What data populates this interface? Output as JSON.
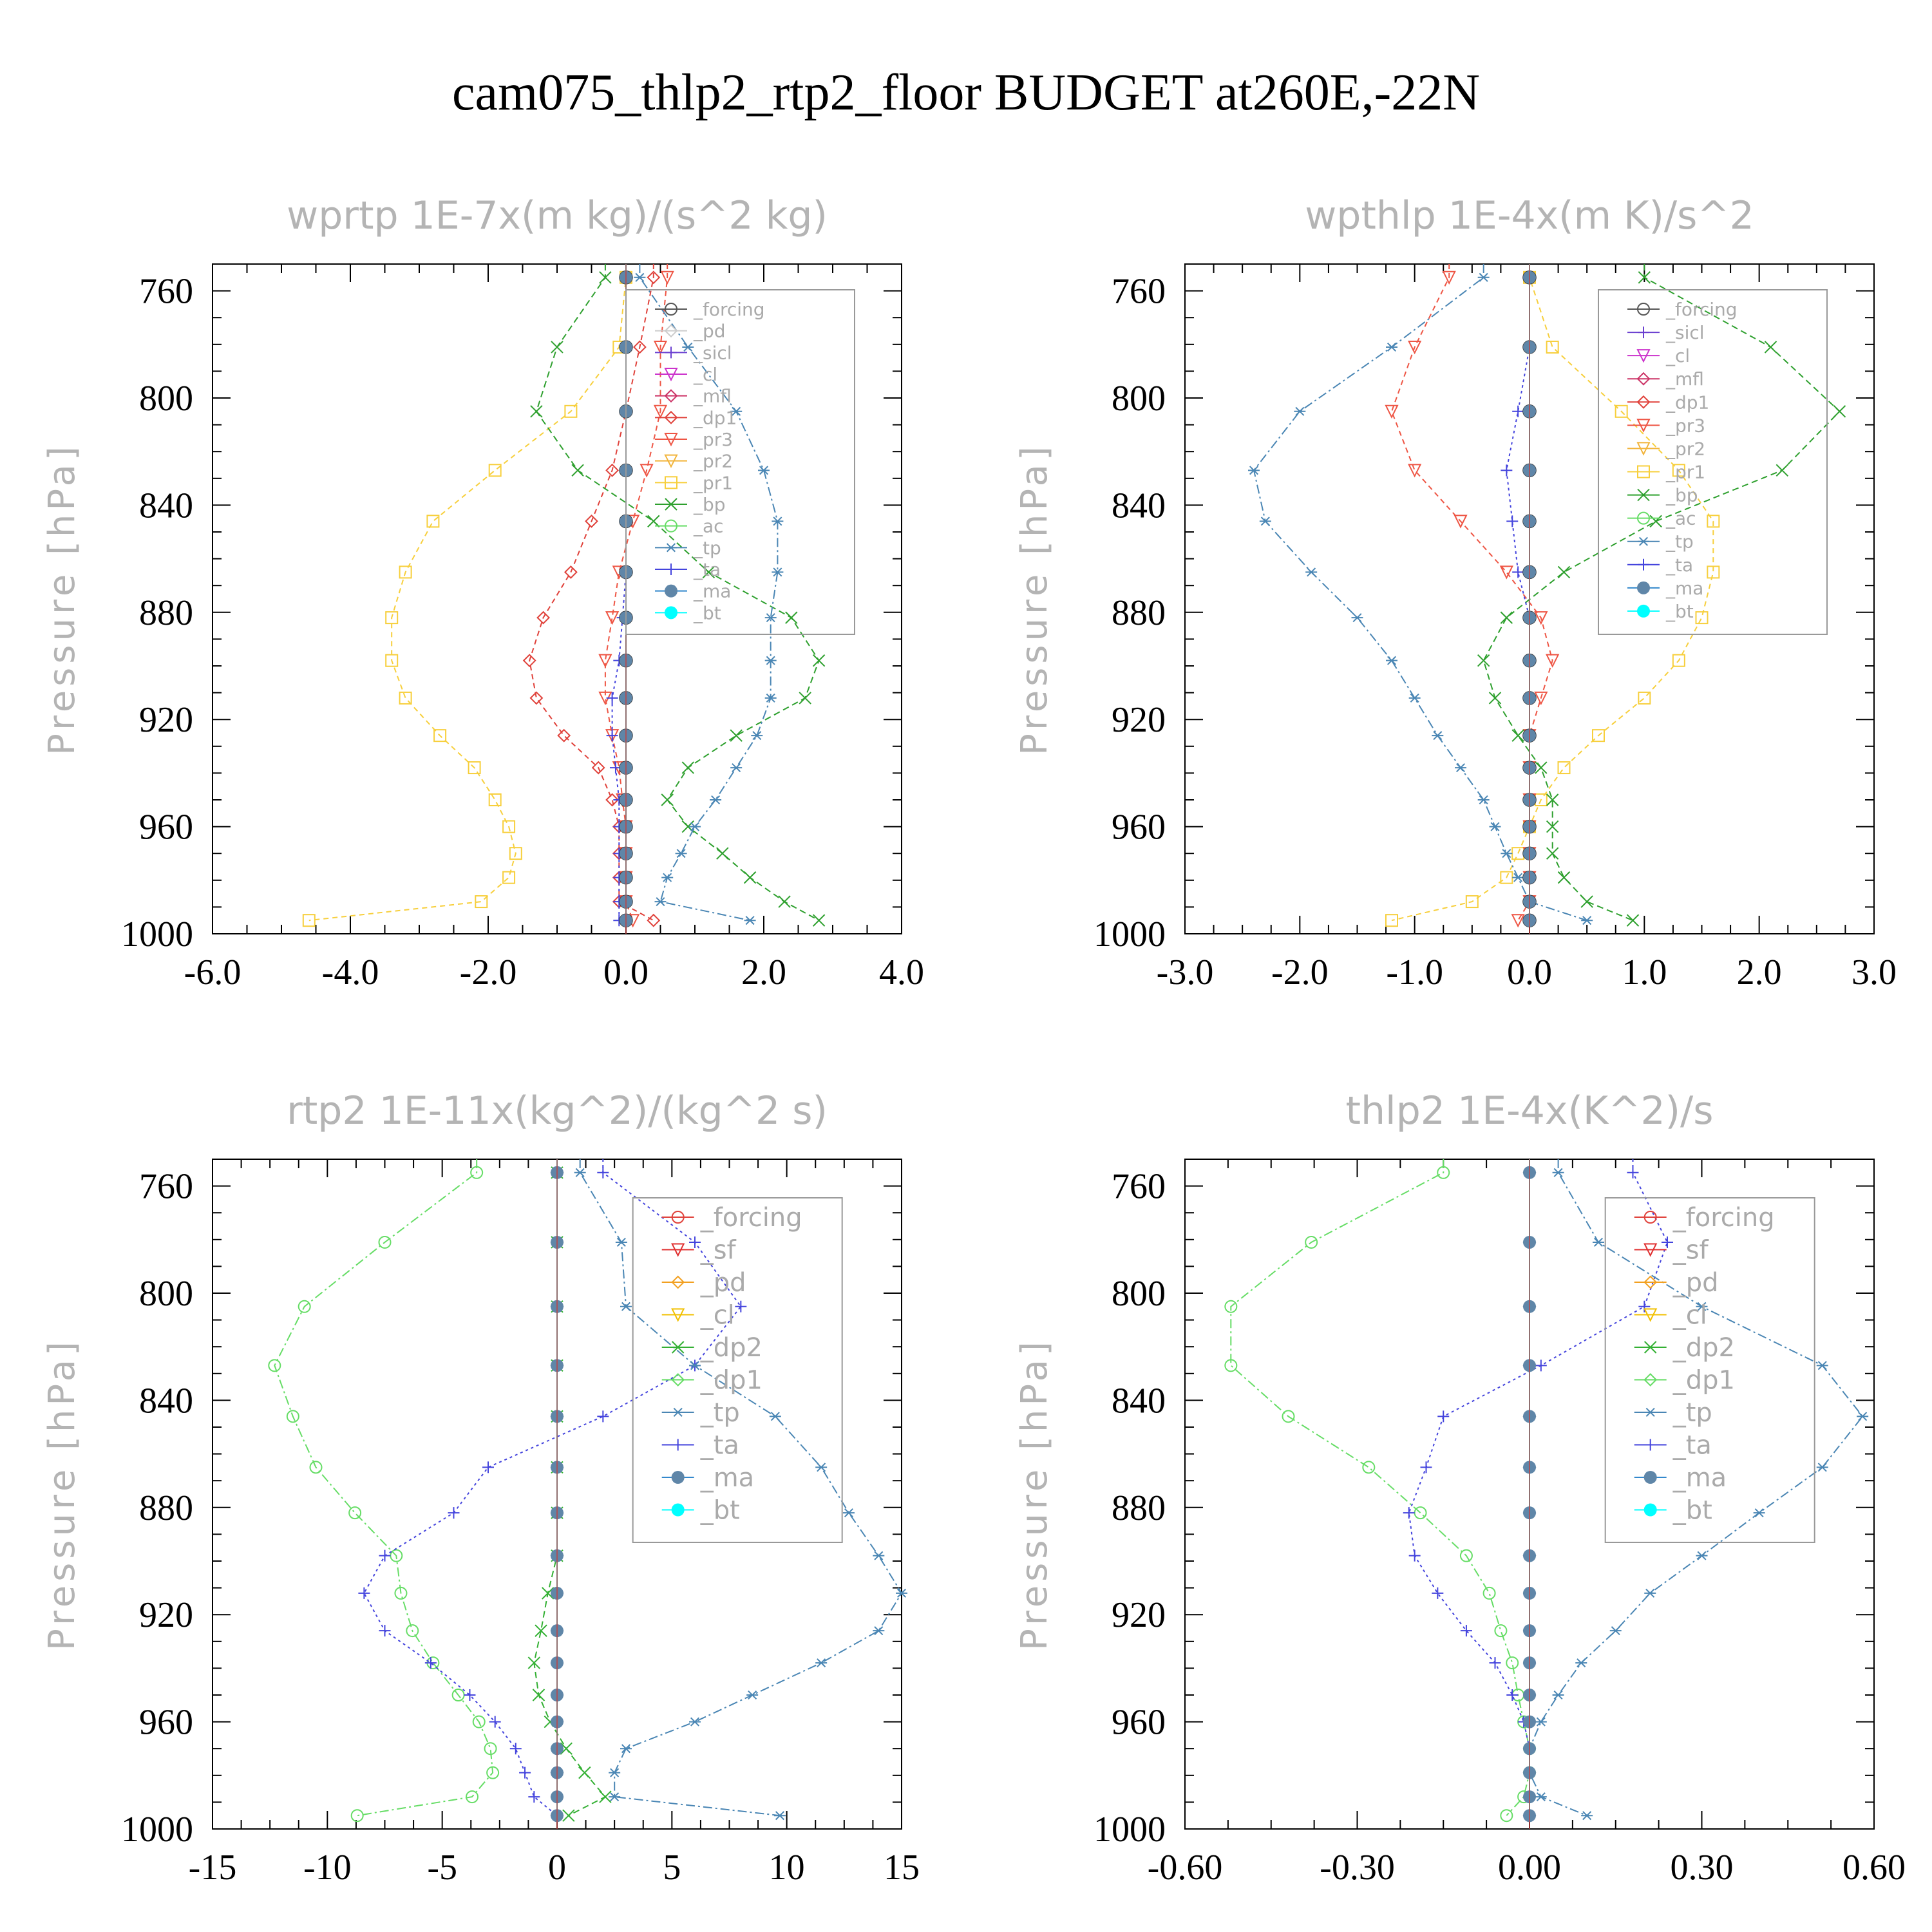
{
  "title": "cam075_thlp2_rtp2_floor  BUDGET at260E,-22N",
  "colors": {
    "forcing": "#555555",
    "pd": "#cccccc",
    "sicl": "#6a3fd0",
    "cl": "#cc33cc",
    "mfl": "#cc3366",
    "dp1": "#e0413a",
    "pr3": "#ee5544",
    "pr2": "#f2b43a",
    "pr1": "#f7cf3c",
    "bp": "#2ea02e",
    "ac": "#66dd66",
    "tp": "#4a86b4",
    "ta": "#4444dd",
    "ma": "#3388cc",
    "bt": "#00ffff",
    "sf": "#e03030",
    "dp2": "#33b033",
    "dp1g": "#66dd66",
    "cl_y": "#f2c000",
    "pd_o": "#f2a020"
  },
  "chart_data": [
    {
      "type": "line",
      "panel": "top-left",
      "title": "wprtp  1E-7x(m kg)/(s^2 kg)",
      "ylabel": "Pressure [hPa]",
      "xlabel": "",
      "xlim": [
        -6.0,
        4.0
      ],
      "ylim": [
        1000,
        750
      ],
      "xticks": [
        "-6.0",
        "-4.0",
        "-2.0",
        "0.0",
        "2.0",
        "4.0"
      ],
      "yticks": [
        "760",
        "800",
        "840",
        "880",
        "920",
        "960",
        "1000"
      ],
      "legend_position": "top-right",
      "legend": [
        "_forcing",
        "_pd",
        "_sicl",
        "_cl",
        "_mfl",
        "_dp1",
        "_pr3",
        "_pr2",
        "_pr1",
        "_bp",
        "_ac",
        "_tp",
        "_ta",
        "_ma",
        "_bt"
      ],
      "levels": [
        755,
        781,
        805,
        827,
        846,
        865,
        882,
        898,
        912,
        926,
        938,
        950,
        960,
        970,
        979,
        988,
        995
      ],
      "series": [
        {
          "key": "pr1",
          "values": [
            0.0,
            -0.1,
            -0.8,
            -1.9,
            -2.8,
            -3.2,
            -3.4,
            -3.4,
            -3.2,
            -2.7,
            -2.2,
            -1.9,
            -1.7,
            -1.6,
            -1.7,
            -2.1,
            -4.6
          ],
          "marker": "square",
          "dash": "8,6"
        },
        {
          "key": "pr3",
          "values": [
            0.6,
            0.5,
            0.5,
            0.3,
            0.1,
            -0.1,
            -0.2,
            -0.3,
            -0.3,
            -0.2,
            -0.1,
            -0.05,
            0.0,
            0.0,
            0.0,
            0.0,
            0.1
          ],
          "marker": "tri-down",
          "dash": "8,6"
        },
        {
          "key": "dp1",
          "values": [
            0.4,
            0.2,
            0.0,
            -0.2,
            -0.5,
            -0.8,
            -1.2,
            -1.4,
            -1.3,
            -0.9,
            -0.4,
            -0.2,
            -0.1,
            -0.1,
            -0.1,
            -0.1,
            0.4
          ],
          "marker": "diamond",
          "dash": "8,6"
        },
        {
          "key": "bp",
          "values": [
            -0.3,
            -1.0,
            -1.3,
            -0.7,
            0.4,
            1.2,
            2.4,
            2.8,
            2.6,
            1.6,
            0.9,
            0.6,
            0.9,
            1.4,
            1.8,
            2.3,
            2.8
          ],
          "marker": "x",
          "dash": "10,6"
        },
        {
          "key": "tp",
          "values": [
            0.2,
            0.9,
            1.6,
            2.0,
            2.2,
            2.2,
            2.1,
            2.1,
            2.1,
            1.9,
            1.6,
            1.3,
            1.0,
            0.8,
            0.6,
            0.5,
            1.8
          ],
          "marker": "star",
          "dash": "14,5,3,5"
        },
        {
          "key": "ta",
          "values": [
            0.0,
            0.0,
            0.0,
            0.0,
            0.0,
            0.0,
            -0.05,
            -0.1,
            -0.2,
            -0.2,
            -0.15,
            -0.1,
            -0.1,
            -0.1,
            -0.1,
            -0.1,
            -0.1
          ],
          "marker": "plus",
          "dash": "4,5"
        },
        {
          "key": "forcing",
          "values": [
            0,
            0,
            0,
            0,
            0,
            0,
            0,
            0,
            0,
            0,
            0,
            0,
            0,
            0,
            0,
            0,
            0
          ],
          "marker": "circle-dot",
          "dash": ""
        },
        {
          "key": "bt",
          "values": [
            0,
            0,
            0,
            0,
            0,
            0,
            0,
            0,
            0,
            0,
            0,
            0,
            0,
            0,
            0,
            0,
            0
          ],
          "marker": "dot",
          "dash": ""
        }
      ]
    },
    {
      "type": "line",
      "panel": "top-right",
      "title": "wpthlp  1E-4x(m K)/s^2",
      "ylabel": "Pressure [hPa]",
      "xlabel": "",
      "xlim": [
        -3.0,
        3.0
      ],
      "ylim": [
        1000,
        750
      ],
      "xticks": [
        "-3.0",
        "-2.0",
        "-1.0",
        "0.0",
        "1.0",
        "2.0",
        "3.0"
      ],
      "yticks": [
        "760",
        "800",
        "840",
        "880",
        "920",
        "960",
        "1000"
      ],
      "legend_position": "top-right",
      "legend": [
        "_forcing",
        "_sicl",
        "_cl",
        "_mfl",
        "_dp1",
        "_pr3",
        "_pr2",
        "_pr1",
        "_bp",
        "_ac",
        "_tp",
        "_ta",
        "_ma",
        "_bt"
      ],
      "levels": [
        755,
        781,
        805,
        827,
        846,
        865,
        882,
        898,
        912,
        926,
        938,
        950,
        960,
        970,
        979,
        988,
        995
      ],
      "series": [
        {
          "key": "pr1",
          "values": [
            0.0,
            0.2,
            0.8,
            1.3,
            1.6,
            1.6,
            1.5,
            1.3,
            1.0,
            0.6,
            0.3,
            0.1,
            0.0,
            -0.1,
            -0.2,
            -0.5,
            -1.2
          ],
          "marker": "square",
          "dash": "8,6"
        },
        {
          "key": "pr3",
          "values": [
            -0.7,
            -1.0,
            -1.2,
            -1.0,
            -0.6,
            -0.2,
            0.1,
            0.2,
            0.1,
            0.0,
            0.0,
            0.0,
            0.0,
            0.0,
            0.0,
            0.0,
            -0.1
          ],
          "marker": "tri-down",
          "dash": "8,6"
        },
        {
          "key": "bp",
          "values": [
            1.0,
            2.1,
            2.7,
            2.2,
            1.1,
            0.3,
            -0.2,
            -0.4,
            -0.3,
            -0.1,
            0.1,
            0.2,
            0.2,
            0.2,
            0.3,
            0.5,
            0.9
          ],
          "marker": "x",
          "dash": "10,6"
        },
        {
          "key": "tp",
          "values": [
            -0.4,
            -1.2,
            -2.0,
            -2.4,
            -2.3,
            -1.9,
            -1.5,
            -1.2,
            -1.0,
            -0.8,
            -0.6,
            -0.4,
            -0.3,
            -0.2,
            -0.1,
            0.0,
            0.5
          ],
          "marker": "star",
          "dash": "14,5,3,5"
        },
        {
          "key": "ta",
          "values": [
            0.0,
            0.0,
            -0.1,
            -0.2,
            -0.15,
            -0.1,
            0.0,
            0.0,
            0.0,
            0.0,
            0.0,
            0.0,
            0.0,
            0.0,
            0.0,
            0.0,
            0.0
          ],
          "marker": "plus",
          "dash": "4,5"
        },
        {
          "key": "forcing",
          "values": [
            0,
            0,
            0,
            0,
            0,
            0,
            0,
            0,
            0,
            0,
            0,
            0,
            0,
            0,
            0,
            0,
            0
          ],
          "marker": "circle-dot",
          "dash": ""
        },
        {
          "key": "bt",
          "values": [
            0,
            0,
            0,
            0,
            0,
            0,
            0,
            0,
            0,
            0,
            0,
            0,
            0,
            0,
            0,
            0,
            0
          ],
          "marker": "dot",
          "dash": ""
        }
      ]
    },
    {
      "type": "line",
      "panel": "bottom-left",
      "title": "rtp2  1E-11x(kg^2)/(kg^2 s)",
      "ylabel": "Pressure [hPa]",
      "xlabel": "",
      "xlim": [
        -15,
        15
      ],
      "ylim": [
        1000,
        750
      ],
      "xticks": [
        "-15",
        "-10",
        "-5",
        "0",
        "5",
        "10",
        "15"
      ],
      "yticks": [
        "760",
        "800",
        "840",
        "880",
        "920",
        "960",
        "1000"
      ],
      "legend_position": "top-right",
      "legend": [
        "_forcing",
        "_sf",
        "_pd",
        "_cl",
        "_dp2",
        "_dp1",
        "_tp",
        "_ta",
        "_ma",
        "_bt"
      ],
      "levels": [
        755,
        781,
        805,
        827,
        846,
        865,
        882,
        898,
        912,
        926,
        938,
        950,
        960,
        970,
        979,
        988,
        995
      ],
      "series": [
        {
          "key": "dp1g",
          "values": [
            -3.5,
            -7.5,
            -11.0,
            -12.3,
            -11.5,
            -10.5,
            -8.8,
            -7.0,
            -6.8,
            -6.3,
            -5.4,
            -4.3,
            -3.4,
            -2.9,
            -2.8,
            -3.7,
            -8.7
          ],
          "marker": "circle",
          "dash": "14,5,3,5"
        },
        {
          "key": "ta",
          "values": [
            2.0,
            6.0,
            8.0,
            6.0,
            2.0,
            -3.0,
            -4.5,
            -7.5,
            -8.4,
            -7.5,
            -5.5,
            -3.8,
            -2.7,
            -1.8,
            -1.4,
            -1.0,
            0.0
          ],
          "marker": "plus",
          "dash": "4,5"
        },
        {
          "key": "tp",
          "values": [
            1.0,
            2.8,
            3.0,
            6.0,
            9.5,
            11.5,
            12.7,
            14.0,
            15.0,
            14.0,
            11.5,
            8.5,
            6.0,
            3.0,
            2.5,
            2.5,
            9.7
          ],
          "marker": "star",
          "dash": "14,5,3,5"
        },
        {
          "key": "dp2",
          "values": [
            0.0,
            0.0,
            0.0,
            0.0,
            0.0,
            0.0,
            0.0,
            0.0,
            -0.4,
            -0.7,
            -1.0,
            -0.8,
            -0.3,
            0.4,
            1.2,
            2.1,
            0.5
          ],
          "marker": "x",
          "dash": "10,6"
        },
        {
          "key": "forcing",
          "values": [
            0,
            0,
            0,
            0,
            0,
            0,
            0,
            0,
            0,
            0,
            0,
            0,
            0,
            0,
            0,
            0,
            0
          ],
          "marker": "diamond",
          "dash": ""
        },
        {
          "key": "bt",
          "values": [
            0,
            0,
            0,
            0,
            0,
            0,
            0,
            0,
            0,
            0,
            0,
            0,
            0,
            0,
            0,
            0,
            0
          ],
          "marker": "dot",
          "dash": ""
        }
      ]
    },
    {
      "type": "line",
      "panel": "bottom-right",
      "title": "thlp2  1E-4x(K^2)/s",
      "ylabel": "Pressure [hPa]",
      "xlabel": "",
      "xlim": [
        -0.6,
        0.6
      ],
      "ylim": [
        1000,
        750
      ],
      "xticks": [
        "-0.60",
        "-0.30",
        "0.00",
        "0.30",
        "0.60"
      ],
      "yticks": [
        "760",
        "800",
        "840",
        "880",
        "920",
        "960",
        "1000"
      ],
      "legend_position": "top-right",
      "legend": [
        "_forcing",
        "_sf",
        "_pd",
        "_cl",
        "_dp2",
        "_dp1",
        "_tp",
        "_ta",
        "_ma",
        "_bt"
      ],
      "levels": [
        755,
        781,
        805,
        827,
        846,
        865,
        882,
        898,
        912,
        926,
        938,
        950,
        960,
        970,
        979,
        988,
        995
      ],
      "series": [
        {
          "key": "dp1g",
          "values": [
            -0.15,
            -0.38,
            -0.52,
            -0.52,
            -0.42,
            -0.28,
            -0.19,
            -0.11,
            -0.07,
            -0.05,
            -0.03,
            -0.02,
            -0.01,
            0.0,
            0.0,
            -0.01,
            -0.04
          ],
          "marker": "circle",
          "dash": "14,5,3,5"
        },
        {
          "key": "ta",
          "values": [
            0.18,
            0.24,
            0.2,
            0.02,
            -0.15,
            -0.18,
            -0.21,
            -0.2,
            -0.16,
            -0.11,
            -0.06,
            -0.03,
            -0.01,
            0.0,
            0.0,
            0.0,
            0.0
          ],
          "marker": "plus",
          "dash": "4,5"
        },
        {
          "key": "tp",
          "values": [
            0.05,
            0.12,
            0.3,
            0.51,
            0.58,
            0.51,
            0.4,
            0.3,
            0.21,
            0.15,
            0.09,
            0.05,
            0.02,
            0.0,
            0.0,
            0.02,
            0.1
          ],
          "marker": "star",
          "dash": "14,5,3,5"
        },
        {
          "key": "forcing",
          "values": [
            0,
            0,
            0,
            0,
            0,
            0,
            0,
            0,
            0,
            0,
            0,
            0,
            0,
            0,
            0,
            0,
            0
          ],
          "marker": "diamond",
          "dash": ""
        },
        {
          "key": "bt",
          "values": [
            0,
            0,
            0,
            0,
            0,
            0,
            0,
            0,
            0,
            0,
            0,
            0,
            0,
            0,
            0,
            0,
            0
          ],
          "marker": "dot",
          "dash": ""
        }
      ]
    }
  ]
}
